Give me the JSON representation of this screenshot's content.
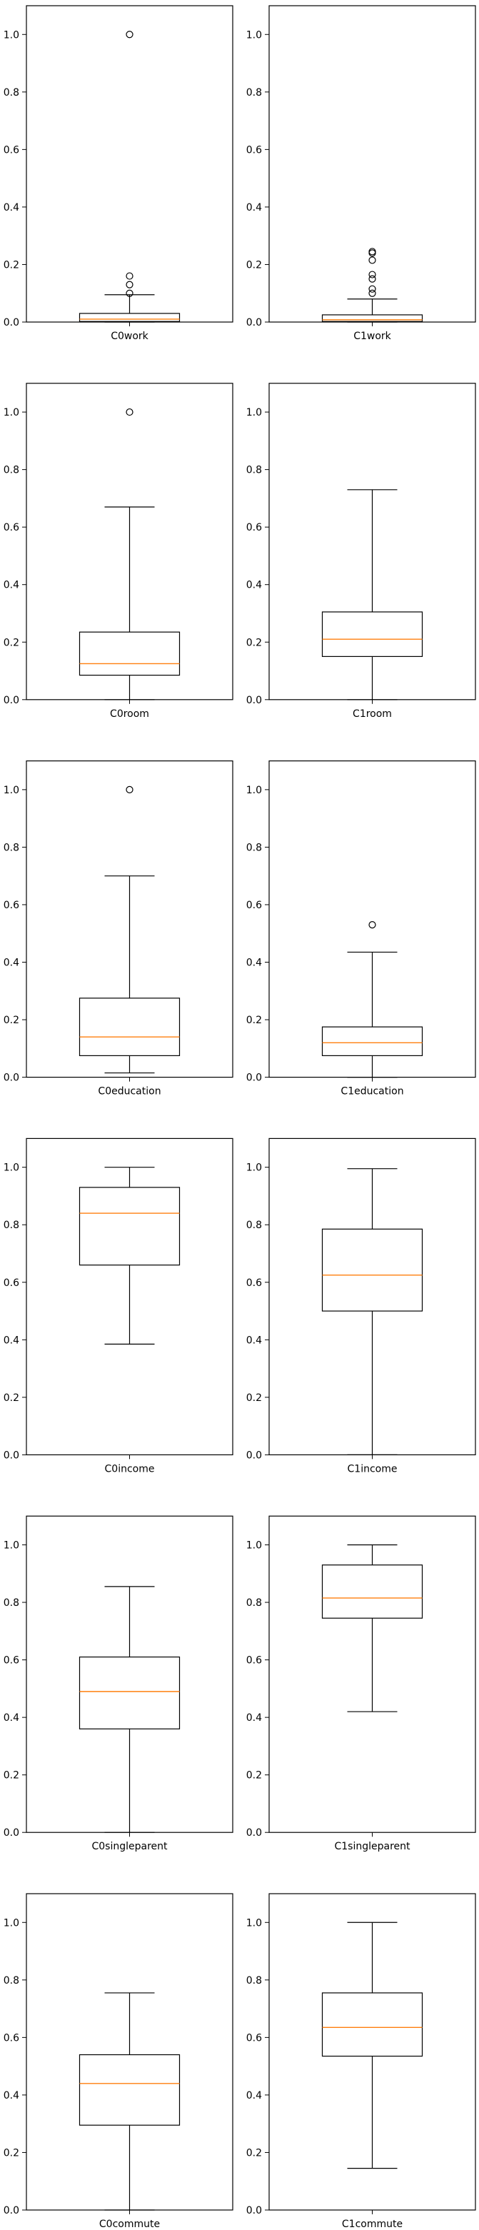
{
  "chart_data": [
    {
      "type": "box",
      "xlabel": "C0work",
      "ylim": [
        0,
        1.1
      ],
      "yticks": [
        "0.0",
        "0.2",
        "0.4",
        "0.6",
        "0.8",
        "1.0"
      ],
      "box": {
        "whisker_low": 0.0,
        "q1": 0.002,
        "median": 0.01,
        "q3": 0.03,
        "whisker_high": 0.095
      },
      "outliers": [
        0.1,
        0.13,
        0.16,
        1.0
      ]
    },
    {
      "type": "box",
      "xlabel": "C1work",
      "ylim": [
        0,
        1.1
      ],
      "yticks": [
        "0.0",
        "0.2",
        "0.4",
        "0.6",
        "0.8",
        "1.0"
      ],
      "box": {
        "whisker_low": 0.0,
        "q1": 0.002,
        "median": 0.008,
        "q3": 0.025,
        "whisker_high": 0.08
      },
      "outliers": [
        0.1,
        0.115,
        0.15,
        0.165,
        0.215,
        0.24,
        0.245
      ]
    },
    {
      "type": "box",
      "xlabel": "C0room",
      "ylim": [
        0,
        1.1
      ],
      "yticks": [
        "0.0",
        "0.2",
        "0.4",
        "0.6",
        "0.8",
        "1.0"
      ],
      "box": {
        "whisker_low": 0.0,
        "q1": 0.085,
        "median": 0.125,
        "q3": 0.235,
        "whisker_high": 0.67
      },
      "outliers": [
        1.0
      ]
    },
    {
      "type": "box",
      "xlabel": "C1room",
      "ylim": [
        0,
        1.1
      ],
      "yticks": [
        "0.0",
        "0.2",
        "0.4",
        "0.6",
        "0.8",
        "1.0"
      ],
      "box": {
        "whisker_low": 0.0,
        "q1": 0.15,
        "median": 0.21,
        "q3": 0.305,
        "whisker_high": 0.73
      },
      "outliers": []
    },
    {
      "type": "box",
      "xlabel": "C0education",
      "ylim": [
        0,
        1.1
      ],
      "yticks": [
        "0.0",
        "0.2",
        "0.4",
        "0.6",
        "0.8",
        "1.0"
      ],
      "box": {
        "whisker_low": 0.015,
        "q1": 0.075,
        "median": 0.14,
        "q3": 0.275,
        "whisker_high": 0.7
      },
      "outliers": [
        1.0
      ]
    },
    {
      "type": "box",
      "xlabel": "C1education",
      "ylim": [
        0,
        1.1
      ],
      "yticks": [
        "0.0",
        "0.2",
        "0.4",
        "0.6",
        "0.8",
        "1.0"
      ],
      "box": {
        "whisker_low": 0.0,
        "q1": 0.075,
        "median": 0.12,
        "q3": 0.175,
        "whisker_high": 0.435
      },
      "outliers": [
        0.53
      ]
    },
    {
      "type": "box",
      "xlabel": "C0income",
      "ylim": [
        0,
        1.1
      ],
      "yticks": [
        "0.0",
        "0.2",
        "0.4",
        "0.6",
        "0.8",
        "1.0"
      ],
      "box": {
        "whisker_low": 0.385,
        "q1": 0.66,
        "median": 0.84,
        "q3": 0.93,
        "whisker_high": 1.0
      },
      "outliers": []
    },
    {
      "type": "box",
      "xlabel": "C1income",
      "ylim": [
        0,
        1.1
      ],
      "yticks": [
        "0.0",
        "0.2",
        "0.4",
        "0.6",
        "0.8",
        "1.0"
      ],
      "box": {
        "whisker_low": 0.0,
        "q1": 0.5,
        "median": 0.625,
        "q3": 0.785,
        "whisker_high": 0.995
      },
      "outliers": []
    },
    {
      "type": "box",
      "xlabel": "C0singleparent",
      "ylim": [
        0,
        1.1
      ],
      "yticks": [
        "0.0",
        "0.2",
        "0.4",
        "0.6",
        "0.8",
        "1.0"
      ],
      "box": {
        "whisker_low": 0.0,
        "q1": 0.36,
        "median": 0.49,
        "q3": 0.61,
        "whisker_high": 0.855
      },
      "outliers": []
    },
    {
      "type": "box",
      "xlabel": "C1singleparent",
      "ylim": [
        0,
        1.1
      ],
      "yticks": [
        "0.0",
        "0.2",
        "0.4",
        "0.6",
        "0.8",
        "1.0"
      ],
      "box": {
        "whisker_low": 0.42,
        "q1": 0.745,
        "median": 0.815,
        "q3": 0.93,
        "whisker_high": 1.0
      },
      "outliers": []
    },
    {
      "type": "box",
      "xlabel": "C0commute",
      "ylim": [
        0,
        1.1
      ],
      "yticks": [
        "0.0",
        "0.2",
        "0.4",
        "0.6",
        "0.8",
        "1.0"
      ],
      "box": {
        "whisker_low": 0.0,
        "q1": 0.295,
        "median": 0.44,
        "q3": 0.54,
        "whisker_high": 0.755
      },
      "outliers": []
    },
    {
      "type": "box",
      "xlabel": "C1commute",
      "ylim": [
        0,
        1.1
      ],
      "yticks": [
        "0.0",
        "0.2",
        "0.4",
        "0.6",
        "0.8",
        "1.0"
      ],
      "box": {
        "whisker_low": 0.145,
        "q1": 0.535,
        "median": 0.635,
        "q3": 0.755,
        "whisker_high": 1.0
      },
      "outliers": []
    }
  ],
  "style": {
    "box_color": "#000000",
    "median_color": "#ff7f0e",
    "frame_color": "#000000"
  }
}
